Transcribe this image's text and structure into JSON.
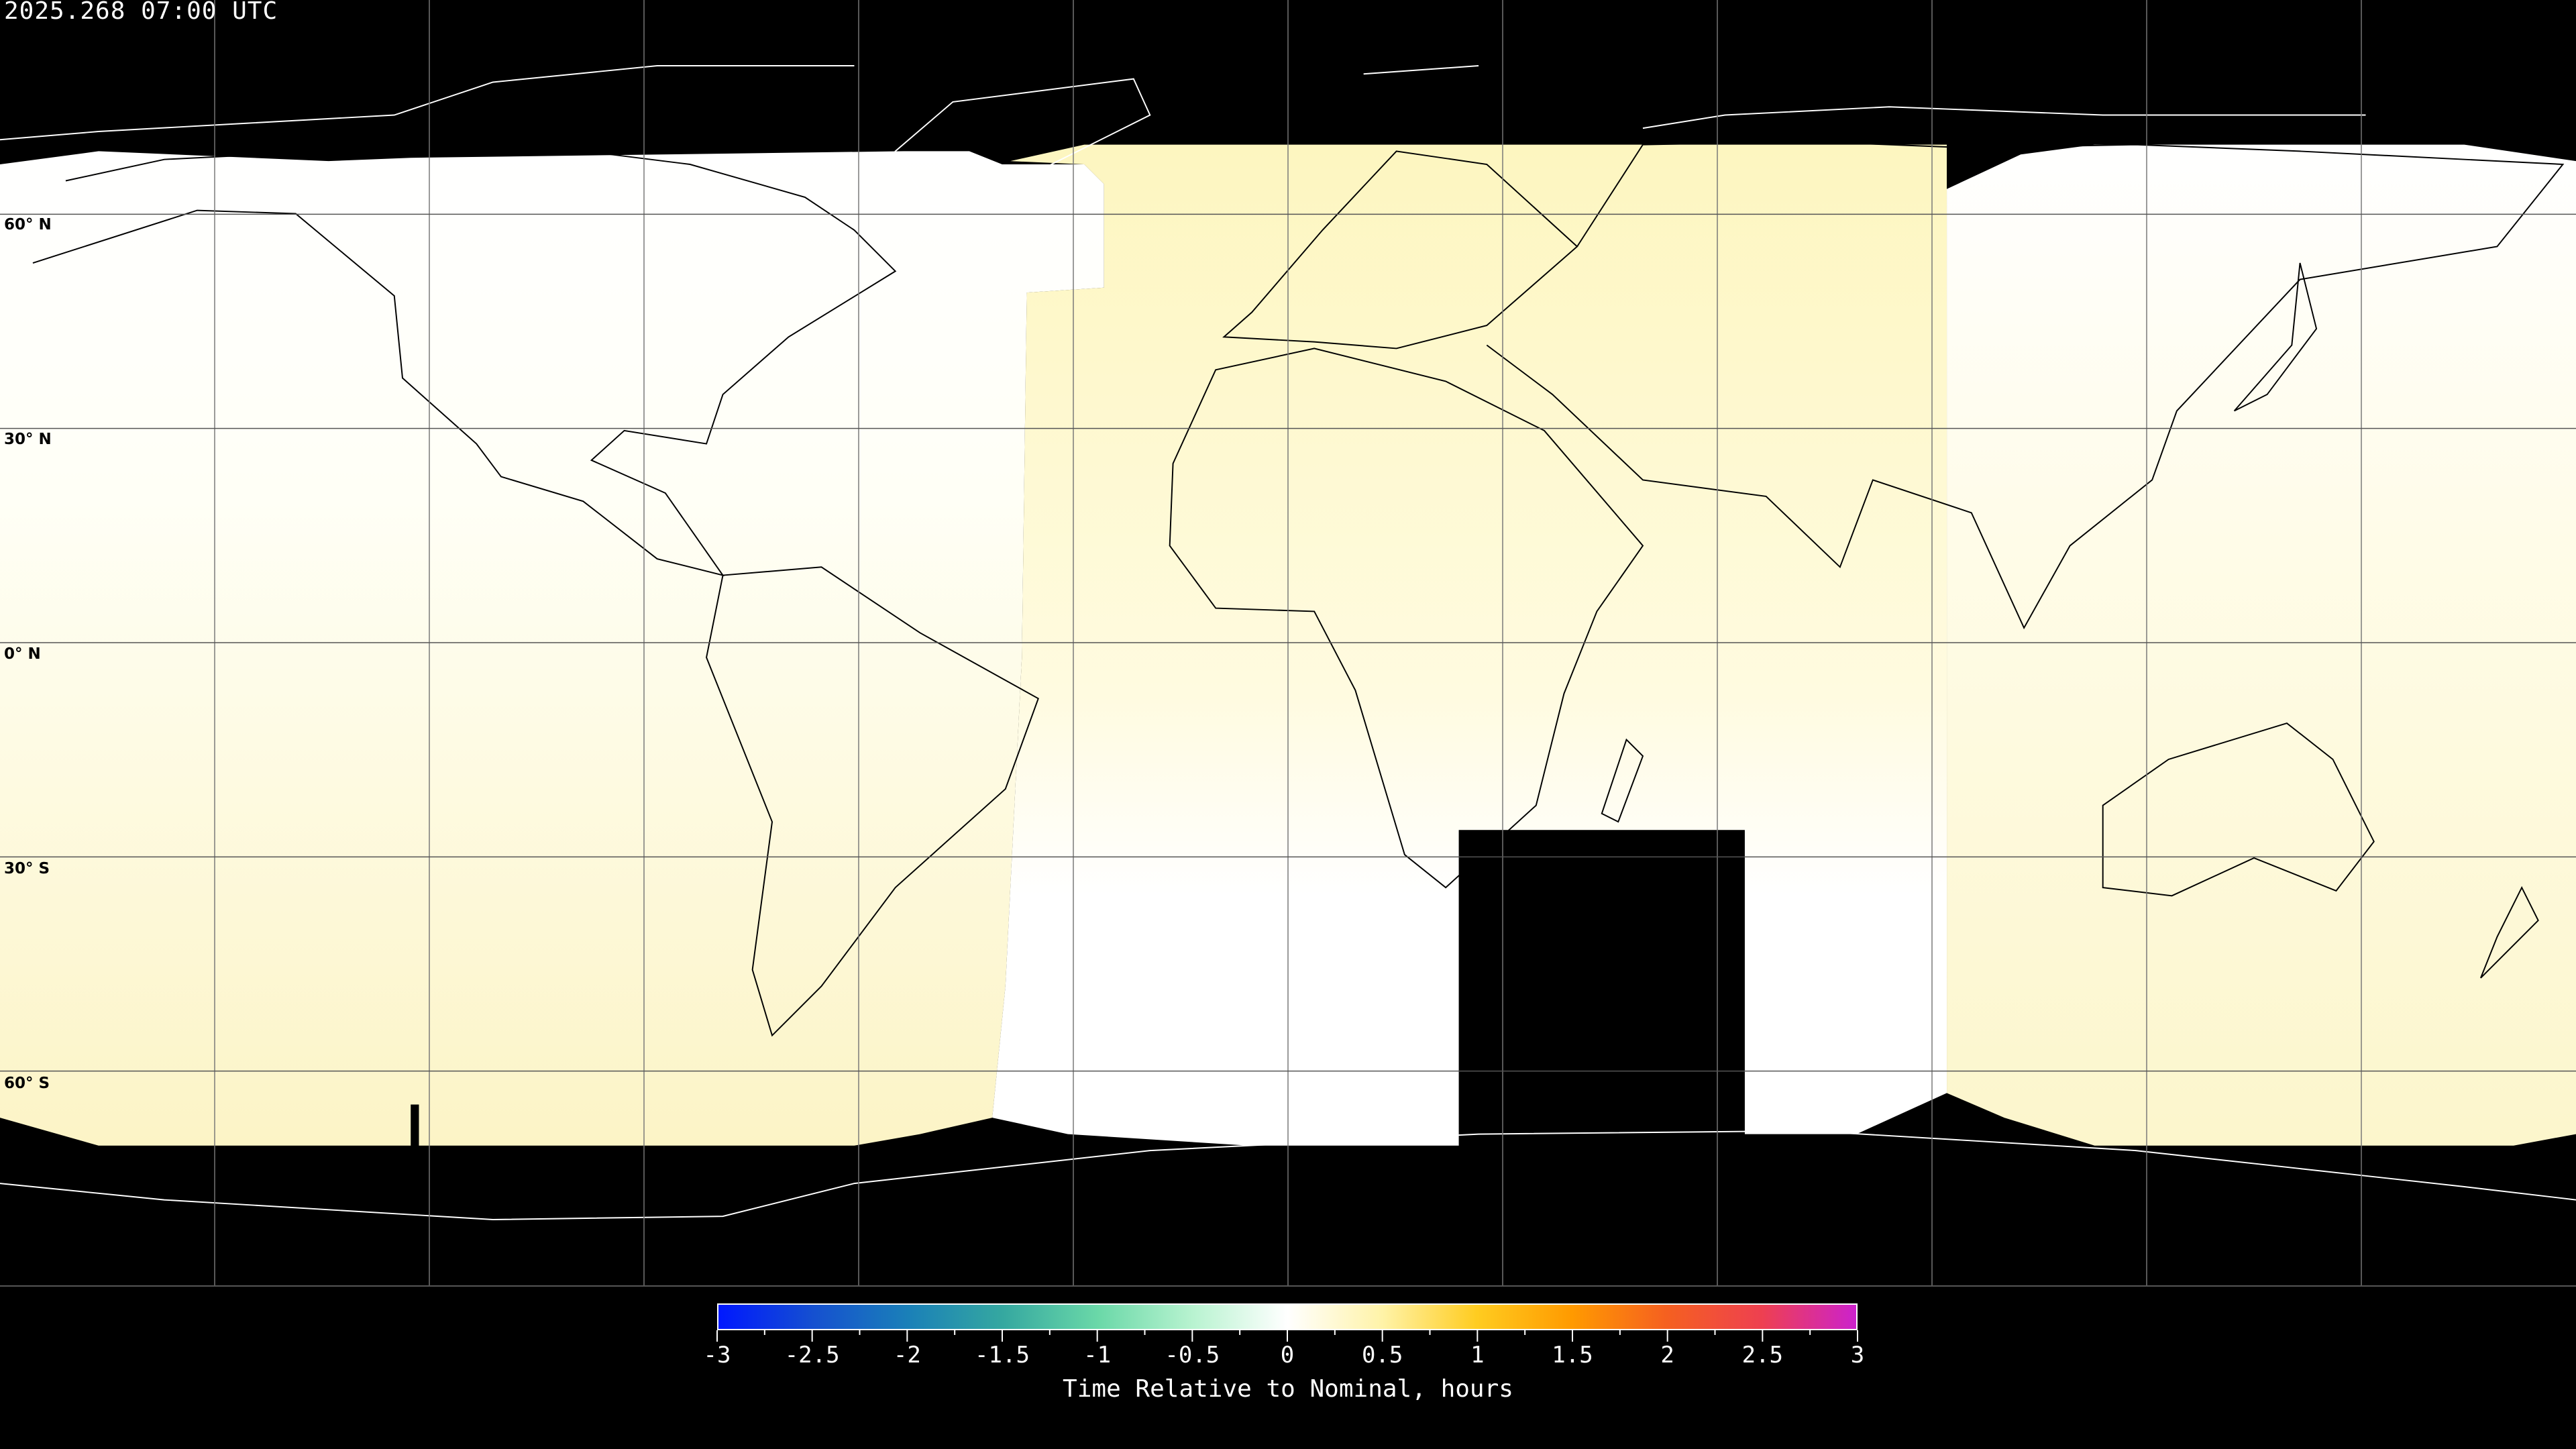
{
  "header": {
    "timestamp": "2025.268 07:00 UTC"
  },
  "map": {
    "projection": "equirectangular",
    "lat_labels": [
      "60° N",
      "30° N",
      "0° N",
      "30° S",
      "60° S"
    ],
    "grid_lon_step_deg": 30,
    "grid_lat_step_deg": 30,
    "no_data_color": "#000000",
    "coastline_color_on_data": "#000000",
    "coastline_color_on_nodata": "#ffffff"
  },
  "colorbar": {
    "title": "Time Relative to Nominal, hours",
    "min": -3,
    "max": 3,
    "tick_labels": [
      "-3",
      "-2.5",
      "-2",
      "-1.5",
      "-1",
      "-0.5",
      "0",
      "0.5",
      "1",
      "1.5",
      "2",
      "2.5",
      "3"
    ],
    "colors": [
      "#0018ff",
      "#1550d0",
      "#1a80b8",
      "#35a8a0",
      "#6ad8a8",
      "#b8f3d0",
      "#ffffff",
      "#fff3a8",
      "#ffcc20",
      "#ff9a00",
      "#f56020",
      "#ee4050",
      "#cc22cc"
    ]
  }
}
